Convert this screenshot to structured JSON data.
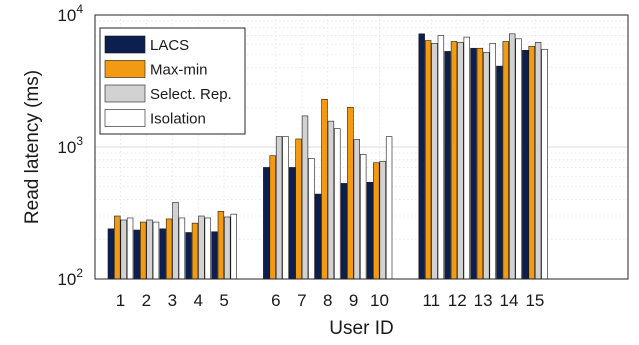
{
  "chart_data": {
    "type": "bar",
    "xlabel": "User ID",
    "ylabel": "Read latency (ms)",
    "yscale": "log",
    "ylim": [
      100,
      10000
    ],
    "yticks": [
      {
        "value": 100,
        "base": "10",
        "exp": "2"
      },
      {
        "value": 1000,
        "base": "10",
        "exp": "3"
      },
      {
        "value": 10000,
        "base": "10",
        "exp": "4"
      }
    ],
    "grid": true,
    "legend_position": "top-left",
    "groups": [
      [
        "1",
        "2",
        "3",
        "4",
        "5"
      ],
      [
        "6",
        "7",
        "8",
        "9",
        "10"
      ],
      [
        "11",
        "12",
        "13",
        "14",
        "15"
      ]
    ],
    "categories": [
      "1",
      "2",
      "3",
      "4",
      "5",
      "6",
      "7",
      "8",
      "9",
      "10",
      "11",
      "12",
      "13",
      "14",
      "15"
    ],
    "series": [
      {
        "name": "LACS",
        "color": "#0d1f4f",
        "values": [
          240,
          235,
          240,
          225,
          228,
          700,
          700,
          440,
          530,
          540,
          7200,
          5300,
          5600,
          4100,
          5400
        ]
      },
      {
        "name": "Max-min",
        "color": "#f29a12",
        "values": [
          300,
          270,
          285,
          265,
          325,
          860,
          1150,
          2300,
          2000,
          760,
          6400,
          6300,
          5600,
          6300,
          5800
        ]
      },
      {
        "name": "Select. Rep.",
        "color": "#d2d2d2",
        "values": [
          280,
          280,
          380,
          300,
          295,
          1200,
          1720,
          1570,
          1140,
          780,
          6100,
          6200,
          5200,
          7200,
          6200
        ]
      },
      {
        "name": "Isolation",
        "color": "#ffffff",
        "values": [
          290,
          270,
          290,
          290,
          310,
          1200,
          820,
          1380,
          880,
          1200,
          7000,
          6800,
          6100,
          6600,
          5500
        ]
      }
    ]
  }
}
